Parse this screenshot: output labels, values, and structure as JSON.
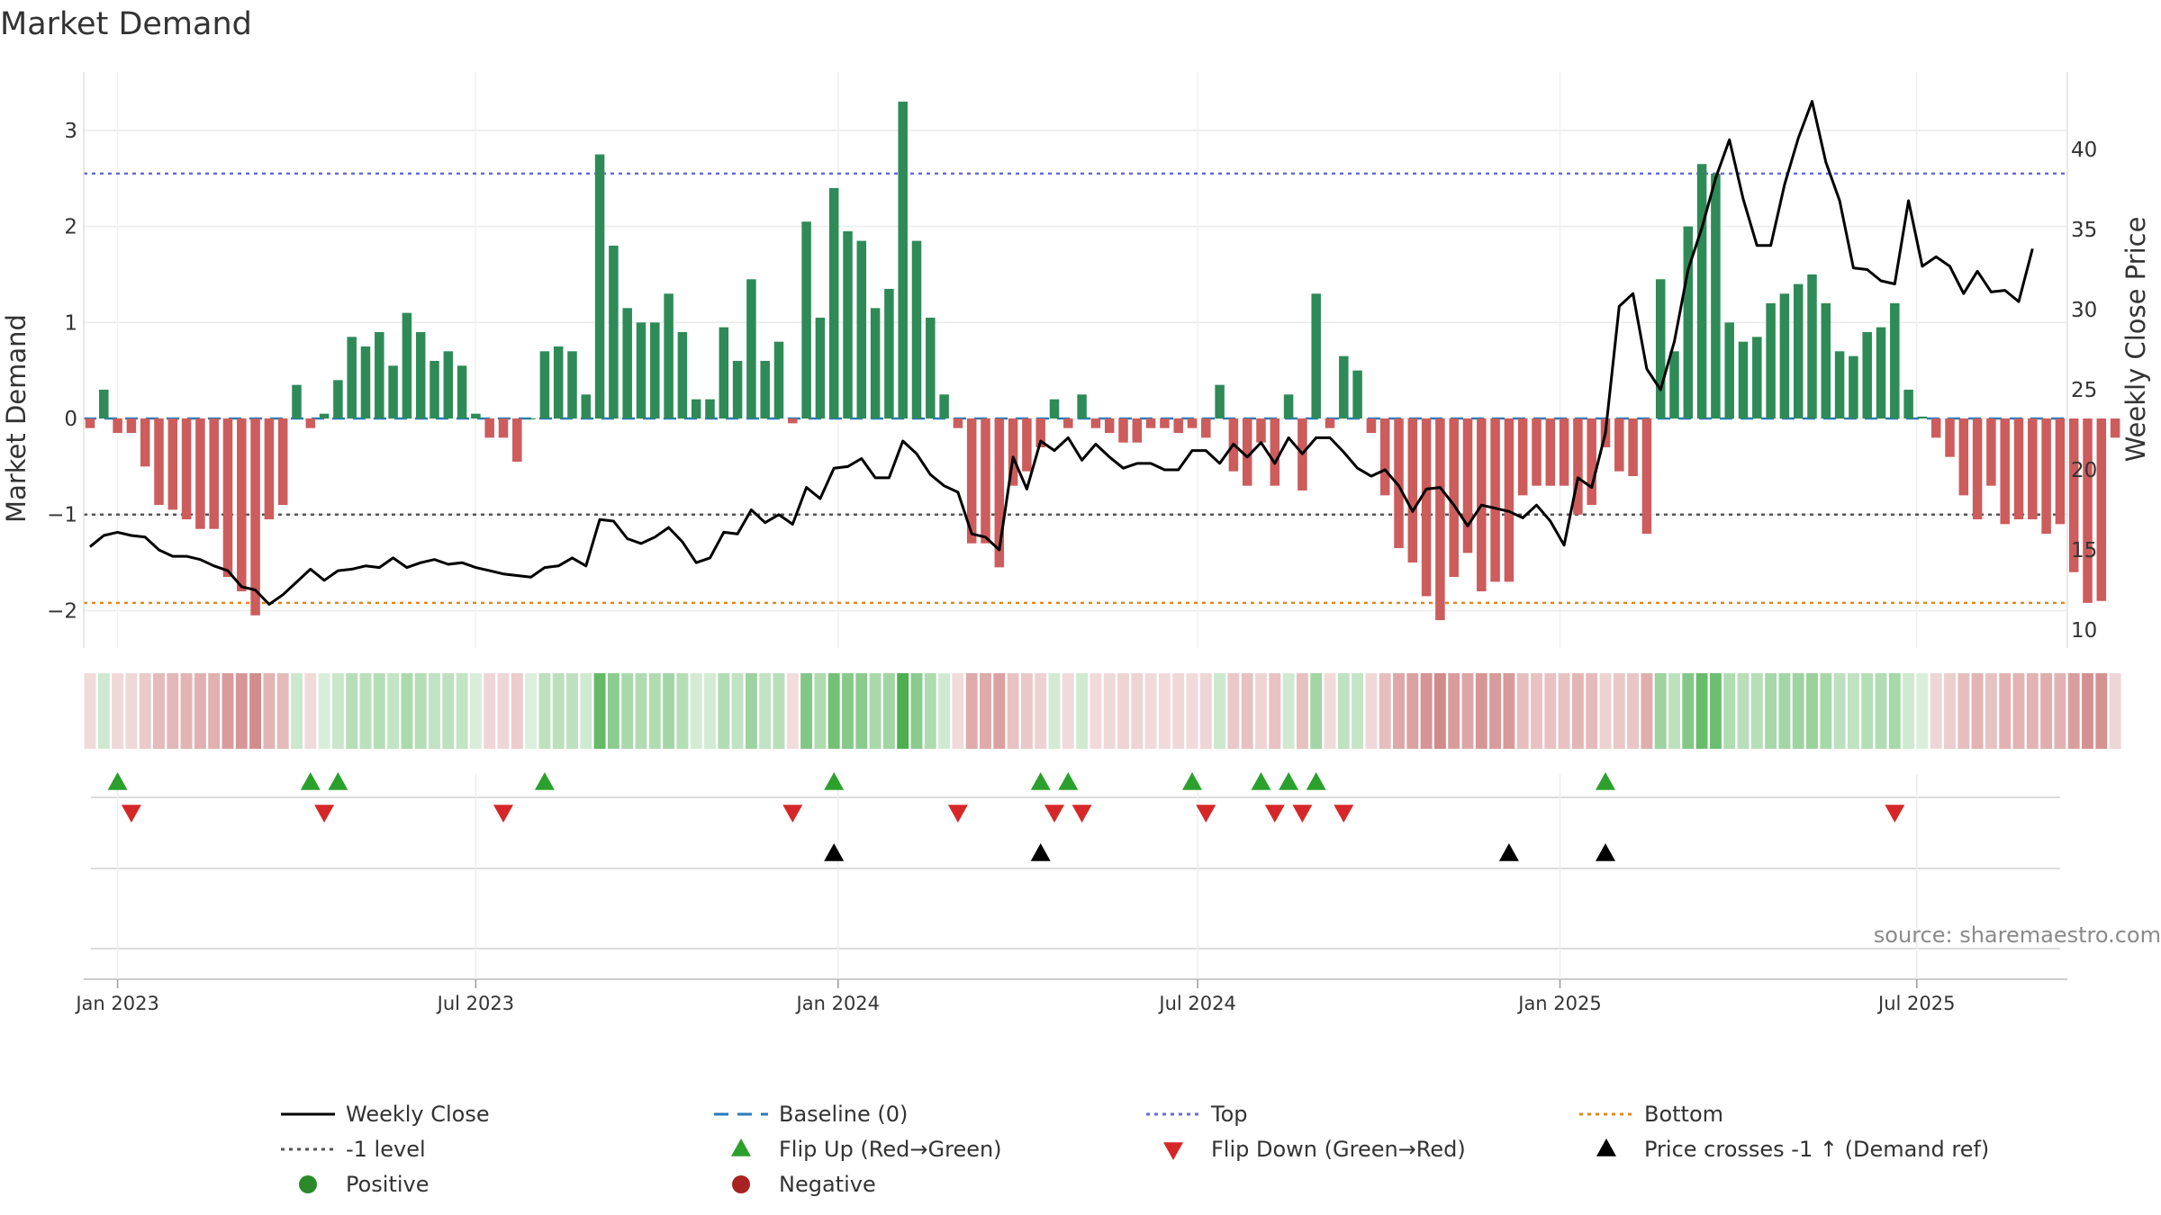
{
  "chart_data": {
    "type": "bar",
    "title": "Market Demand",
    "ylabel": "Market Demand",
    "y2label": "Weekly Close Price",
    "ylim": [
      -2.4,
      3.55
    ],
    "y2lim": [
      8.8,
      44.5
    ],
    "yticks": [
      "3",
      "2",
      "1",
      "0",
      "−1",
      "−2"
    ],
    "y2ticks": [
      "40",
      "35",
      "30",
      "25",
      "20",
      "15",
      "10"
    ],
    "x_tick_labels": [
      "Jan 2023",
      "Jul 2023",
      "Jan 2024",
      "Jul 2024",
      "Jan 2025",
      "Jul 2025"
    ],
    "weeks": 144,
    "x_tick_weeks": [
      2,
      28,
      54.3,
      80.4,
      106.7,
      132.6
    ],
    "reference_levels": {
      "top": 2.55,
      "minus_one": -1.0,
      "bottom": -1.92,
      "baseline": 0
    },
    "demand": [
      -0.1,
      0.3,
      -0.15,
      -0.15,
      -0.5,
      -0.9,
      -0.95,
      -1.05,
      -1.15,
      -1.15,
      -1.65,
      -1.8,
      -2.05,
      -1.05,
      -0.9,
      0.35,
      -0.1,
      0.05,
      0.4,
      0.85,
      0.75,
      0.9,
      0.55,
      1.1,
      0.9,
      0.6,
      0.7,
      0.55,
      0.05,
      -0.2,
      -0.2,
      -0.45,
      0,
      0.7,
      0.75,
      0.7,
      0.25,
      2.75,
      1.8,
      1.15,
      1.0,
      1.0,
      1.3,
      0.9,
      0.2,
      0.2,
      0.95,
      0.6,
      1.45,
      0.6,
      0.8,
      -0.05,
      2.05,
      1.05,
      2.4,
      1.95,
      1.85,
      1.15,
      1.35,
      3.3,
      1.85,
      1.05,
      0.25,
      -0.1,
      -1.3,
      -1.3,
      -1.55,
      -0.7,
      -0.55,
      -0.3,
      0.2,
      -0.1,
      0.25,
      -0.1,
      -0.15,
      -0.25,
      -0.25,
      -0.1,
      -0.1,
      -0.15,
      -0.1,
      -0.2,
      0.35,
      -0.55,
      -0.7,
      -0.25,
      -0.7,
      0.25,
      -0.75,
      1.3,
      -0.1,
      0.65,
      0.5,
      -0.15,
      -0.8,
      -1.35,
      -1.5,
      -1.85,
      -2.1,
      -1.65,
      -1.4,
      -1.8,
      -1.7,
      -1.7,
      -0.8,
      -0.7,
      -0.7,
      -0.7,
      -1.0,
      -0.9,
      -0.3,
      -0.55,
      -0.6,
      -1.2,
      1.45,
      0.7,
      2.0,
      2.65,
      2.55,
      1.0,
      0.8,
      0.85,
      1.2,
      1.3,
      1.4,
      1.5,
      1.2,
      0.7,
      0.65,
      0.9,
      0.95,
      1.2,
      0.3,
      0.02,
      -0.2,
      -0.4,
      -0.8,
      -1.05,
      -0.7,
      -1.1,
      -1.05,
      -1.05,
      -1.2,
      -1.1,
      -1.6,
      -1.92,
      -1.9,
      -0.2
    ],
    "price": [
      15.2,
      15.9,
      16.1,
      15.9,
      15.8,
      15.0,
      14.6,
      14.6,
      14.4,
      14.0,
      13.7,
      12.7,
      12.5,
      11.6,
      12.2,
      13.0,
      13.8,
      13.1,
      13.7,
      13.8,
      14.0,
      13.9,
      14.5,
      13.9,
      14.2,
      14.4,
      14.1,
      14.2,
      13.9,
      13.7,
      13.5,
      13.4,
      13.3,
      13.9,
      14.0,
      14.5,
      14.0,
      16.9,
      16.8,
      15.7,
      15.4,
      15.8,
      16.4,
      15.5,
      14.2,
      14.5,
      16.1,
      16.0,
      17.5,
      16.7,
      17.2,
      16.6,
      18.9,
      18.2,
      20.1,
      20.2,
      20.7,
      19.5,
      19.5,
      21.8,
      21.0,
      19.7,
      19.0,
      18.6,
      16.0,
      15.8,
      15.0,
      20.8,
      18.8,
      21.8,
      21.2,
      22.0,
      20.6,
      21.6,
      20.8,
      20.1,
      20.4,
      20.4,
      20.0,
      20.0,
      21.2,
      21.2,
      20.4,
      21.6,
      20.8,
      21.7,
      20.4,
      22.0,
      21.0,
      22.0,
      22.0,
      21.1,
      20.1,
      19.6,
      20.0,
      19.0,
      17.4,
      18.8,
      18.9,
      17.8,
      16.5,
      17.8,
      17.6,
      17.4,
      17.0,
      17.8,
      16.8,
      15.3,
      19.5,
      18.9,
      22.3,
      30.2,
      31.0,
      26.3,
      25.0,
      28.0,
      32.5,
      35.1,
      38.2,
      40.6,
      36.9,
      34.0,
      34.0,
      37.8,
      40.7,
      43.0,
      39.2,
      36.8,
      32.6,
      32.5,
      31.8,
      31.6,
      36.8,
      32.7,
      33.3,
      32.7,
      31.0,
      32.4,
      31.1,
      31.2,
      30.5,
      33.8
    ],
    "heat_strip": "per-week tiles colored by demand sign and magnitude",
    "flip_up_weeks": [
      2,
      16,
      18,
      33,
      54,
      69,
      71,
      80,
      85,
      87,
      89,
      110
    ],
    "flip_down_weeks": [
      3,
      17,
      30,
      51,
      63,
      70,
      72,
      81,
      86,
      88,
      91,
      131
    ],
    "price_cross_weeks": [
      54,
      69,
      103,
      110
    ],
    "legend": [
      {
        "label": "Weekly Close",
        "kind": "line",
        "color": "#000000"
      },
      {
        "label": "Baseline (0)",
        "kind": "dash",
        "color": "#2b7bb9"
      },
      {
        "label": "Top",
        "kind": "dot",
        "color": "#6a6ad8"
      },
      {
        "label": "Bottom",
        "kind": "dot",
        "color": "#e08a1e"
      },
      {
        "label": "-1 level",
        "kind": "dot",
        "color": "#555555"
      },
      {
        "label": "Flip Up (Red→Green)",
        "kind": "tri-up",
        "color": "#2ca02c"
      },
      {
        "label": "Flip Down (Green→Red)",
        "kind": "tri-down",
        "color": "#d62728"
      },
      {
        "label": "Price crosses -1 ↑ (Demand ref)",
        "kind": "tri-up",
        "color": "#000000"
      },
      {
        "label": "Positive",
        "kind": "dot-marker",
        "color": "#2a8a2a"
      },
      {
        "label": "Negative",
        "kind": "dot-marker",
        "color": "#a82222"
      }
    ],
    "source": "source: sharemaestro.com"
  },
  "colors": {
    "positive_bar": "#2e8b57",
    "negative_bar": "#cd5c5c",
    "price_line": "#000000",
    "baseline": "#2b7bb9",
    "top": "#6a6ad8",
    "bottom": "#e08a1e",
    "minus_one": "#555555",
    "flip_up": "#2ca02c",
    "flip_down": "#d62728",
    "cross": "#000000"
  }
}
